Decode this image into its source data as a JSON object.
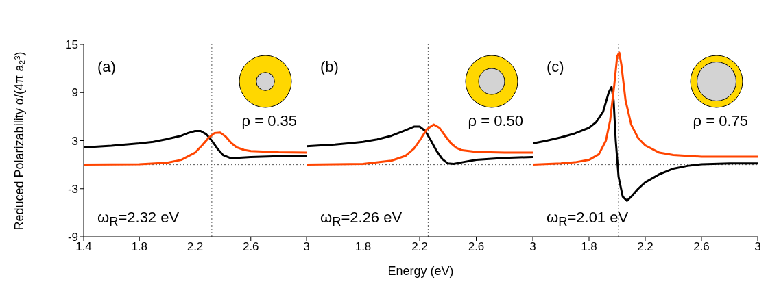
{
  "chart_data": [
    {
      "type": "line",
      "ylabel": "Reduced Polarizability α/(4π a₂³)",
      "xlim": [
        1.4,
        3
      ],
      "xticks": [
        1.4,
        1.8,
        2.2,
        2.6,
        3
      ],
      "ylim": [
        -9,
        15
      ],
      "yticks": [
        -9,
        -3,
        3,
        9,
        15
      ],
      "annotations": [
        "(a)",
        "ρ = 0.35",
        "ω$_{R}$=2.32 eV"
      ],
      "ref_lines": [
        {
          "axis": "x",
          "value": 2.32,
          "line_style": "dotted"
        },
        {
          "axis": "y",
          "value": 0,
          "line_style": "dotted"
        }
      ],
      "series": [
        {
          "color": "#000000",
          "x": [
            1.4,
            1.6,
            1.8,
            1.9,
            2.0,
            2.1,
            2.15,
            2.2,
            2.24,
            2.28,
            2.32,
            2.36,
            2.4,
            2.45,
            2.5,
            2.6,
            2.8,
            3.0
          ],
          "values": [
            2.15,
            2.35,
            2.65,
            2.85,
            3.2,
            3.6,
            3.95,
            4.2,
            4.2,
            3.8,
            3.0,
            2.0,
            1.2,
            0.85,
            0.85,
            0.95,
            1.05,
            1.1
          ]
        },
        {
          "color": "#ff4500",
          "x": [
            1.4,
            1.8,
            2.0,
            2.1,
            2.2,
            2.25,
            2.3,
            2.34,
            2.38,
            2.42,
            2.46,
            2.5,
            2.55,
            2.6,
            2.8,
            3.0
          ],
          "values": [
            0,
            0.05,
            0.25,
            0.6,
            1.5,
            2.4,
            3.4,
            3.95,
            4.0,
            3.5,
            2.7,
            2.15,
            1.85,
            1.7,
            1.55,
            1.5
          ]
        }
      ]
    },
    {
      "type": "line",
      "xlabel": "Energy (eV)",
      "tick_labels": "x",
      "xlim": [
        1.4,
        3
      ],
      "xticks": [
        {
          "value": 1.4,
          "label": null
        },
        1.8,
        2.2,
        2.6,
        3
      ],
      "ylim": [
        -9,
        15
      ],
      "yticks": [
        -9,
        -3,
        3,
        9,
        15
      ],
      "annotations": [
        "(b)",
        "ρ = 0.50",
        "ω$_{R}$=2.26 eV"
      ],
      "ref_lines": [
        {
          "axis": "x",
          "value": 2.26,
          "line_style": "dotted"
        },
        {
          "axis": "y",
          "value": 0,
          "line_style": "dotted"
        }
      ],
      "series": [
        {
          "color": "#000000",
          "x": [
            1.4,
            1.6,
            1.8,
            1.9,
            2.0,
            2.1,
            2.16,
            2.2,
            2.24,
            2.28,
            2.32,
            2.36,
            2.4,
            2.44,
            2.5,
            2.6,
            2.8,
            3.0
          ],
          "values": [
            2.3,
            2.5,
            2.85,
            3.15,
            3.6,
            4.3,
            4.75,
            4.75,
            4.2,
            3.0,
            1.7,
            0.7,
            0.15,
            0.1,
            0.3,
            0.6,
            0.85,
            0.95
          ]
        },
        {
          "color": "#ff4500",
          "x": [
            1.4,
            1.8,
            2.0,
            2.1,
            2.16,
            2.2,
            2.25,
            2.3,
            2.34,
            2.38,
            2.42,
            2.46,
            2.5,
            2.6,
            2.8,
            3.0
          ],
          "values": [
            0,
            0.1,
            0.5,
            1.1,
            2.0,
            3.0,
            4.4,
            5.0,
            4.6,
            3.6,
            2.7,
            2.1,
            1.8,
            1.6,
            1.5,
            1.5
          ]
        }
      ]
    },
    {
      "type": "line",
      "tick_labels": "x",
      "xlim": [
        1.4,
        3
      ],
      "xticks": [
        {
          "value": 1.4,
          "label": null
        },
        1.8,
        2.2,
        2.6,
        3
      ],
      "ylim": [
        -9,
        15
      ],
      "yticks": [
        -9,
        -3,
        3,
        9,
        15
      ],
      "annotations": [
        "(c)",
        "ρ = 0.75",
        "ω$_{R}$=2.01 eV"
      ],
      "ref_lines": [
        {
          "axis": "x",
          "value": 2.01,
          "line_style": "dotted"
        },
        {
          "axis": "y",
          "value": 0,
          "line_style": "dotted"
        }
      ],
      "series": [
        {
          "color": "#000000",
          "x": [
            1.4,
            1.5,
            1.6,
            1.7,
            1.8,
            1.85,
            1.9,
            1.94,
            1.96,
            1.975,
            1.99,
            2.01,
            2.04,
            2.07,
            2.1,
            2.15,
            2.2,
            2.3,
            2.4,
            2.5,
            2.6,
            2.8,
            3.0
          ],
          "values": [
            2.65,
            3.0,
            3.4,
            3.9,
            4.6,
            5.3,
            6.6,
            9.0,
            9.7,
            8.0,
            3.0,
            -1.5,
            -4.0,
            -4.5,
            -4.0,
            -3.0,
            -2.2,
            -1.2,
            -0.5,
            -0.15,
            0.05,
            0.15,
            0.15
          ]
        },
        {
          "color": "#ff4500",
          "x": [
            1.4,
            1.6,
            1.7,
            1.8,
            1.87,
            1.92,
            1.95,
            1.98,
            2.0,
            2.015,
            2.03,
            2.06,
            2.1,
            2.15,
            2.2,
            2.3,
            2.4,
            2.6,
            3.0
          ],
          "values": [
            0,
            0.15,
            0.3,
            0.6,
            1.3,
            3.0,
            5.5,
            10.0,
            13.5,
            14.0,
            12.5,
            8.0,
            5.0,
            3.3,
            2.4,
            1.5,
            1.2,
            1.0,
            1.0
          ]
        }
      ]
    }
  ]
}
